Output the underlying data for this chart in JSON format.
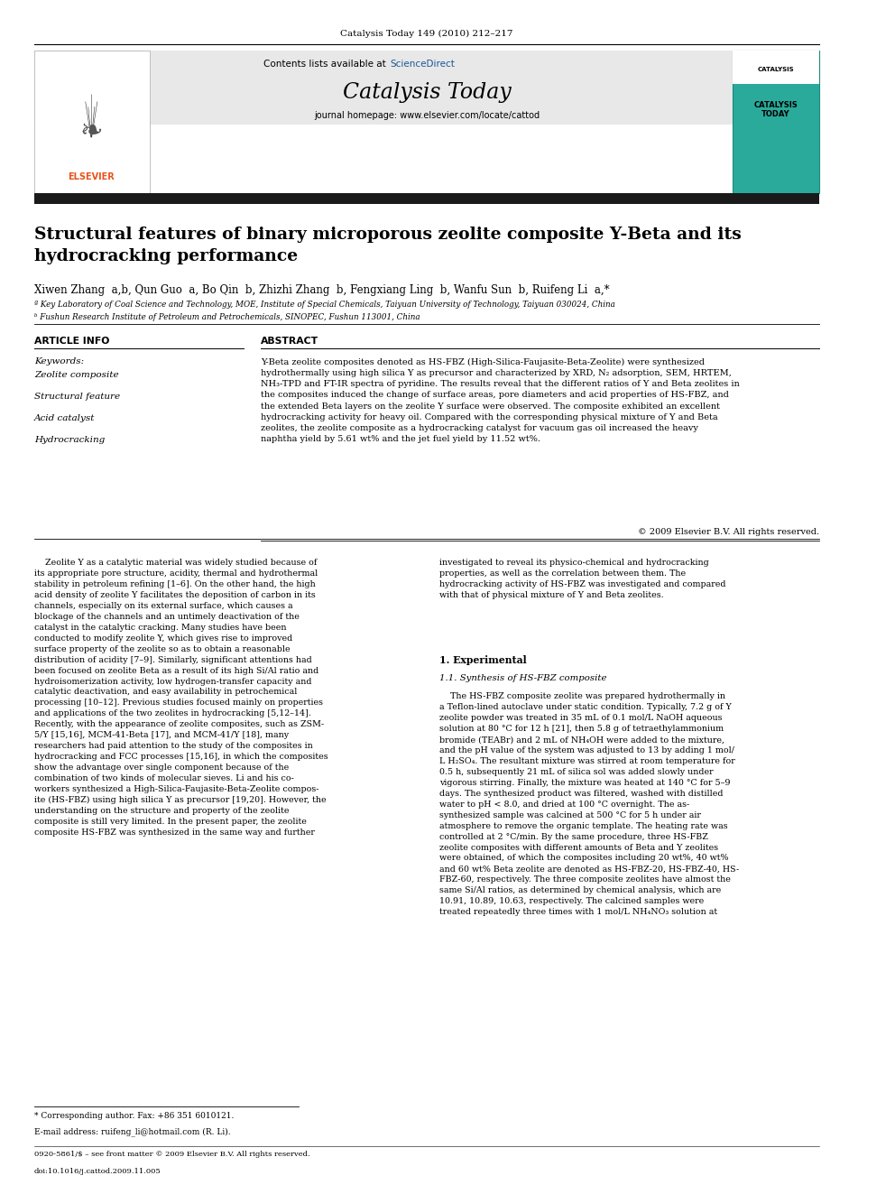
{
  "page_width": 9.92,
  "page_height": 13.23,
  "bg_color": "#ffffff",
  "top_journal_ref": "Catalysis Today 149 (2010) 212–217",
  "header_bg": "#e8e8e8",
  "contents_line_pre": "Contents lists available at ",
  "contents_line_link": "ScienceDirect",
  "sciencedirect_color": "#1a5799",
  "journal_name": "Catalysis Today",
  "journal_homepage": "journal homepage: www.elsevier.com/locate/cattod",
  "elsevier_color": "#e8521a",
  "black_bar_color": "#1a1a1a",
  "title": "Structural features of binary microporous zeolite composite Y-Beta and its\nhydrocracking performance",
  "authors": "Xiwen Zhang  a,b, Qun Guo  a, Bo Qin  b, Zhizhi Zhang  b, Fengxiang Ling  b, Wanfu Sun  b, Ruifeng Li  a,*",
  "affil_a": "ª Key Laboratory of Coal Science and Technology, MOE, Institute of Special Chemicals, Taiyuan University of Technology, Taiyuan 030024, China",
  "affil_b": "ᵇ Fushun Research Institute of Petroleum and Petrochemicals, SINOPEC, Fushun 113001, China",
  "article_info_title": "ARTICLE INFO",
  "keywords_label": "Keywords:",
  "keywords": [
    "Zeolite composite",
    "Structural feature",
    "Acid catalyst",
    "Hydrocracking"
  ],
  "abstract_title": "ABSTRACT",
  "abstract_text": "Y-Beta zeolite composites denoted as HS-FBZ (High-Silica-Faujasite-Beta-Zeolite) were synthesized\nhydrothermally using high silica Y as precursor and characterized by XRD, N₂ adsorption, SEM, HRTEM,\nNH₃-TPD and FT-IR spectra of pyridine. The results reveal that the different ratios of Y and Beta zeolites in\nthe composites induced the change of surface areas, pore diameters and acid properties of HS-FBZ, and\nthe extended Beta layers on the zeolite Y surface were observed. The composite exhibited an excellent\nhydrocracking activity for heavy oil. Compared with the corresponding physical mixture of Y and Beta\nzeolites, the zeolite composite as a hydrocracking catalyst for vacuum gas oil increased the heavy\nnaphtha yield by 5.61 wt% and the jet fuel yield by 11.52 wt%.",
  "copyright_line": "© 2009 Elsevier B.V. All rights reserved.",
  "body_col1_p1": "    Zeolite Y as a catalytic material was widely studied because of\nits appropriate pore structure, acidity, thermal and hydrothermal\nstability in petroleum refining [1–6]. On the other hand, the high\nacid density of zeolite Y facilitates the deposition of carbon in its\nchannels, especially on its external surface, which causes a\nblockage of the channels and an untimely deactivation of the\ncatalyst in the catalytic cracking. Many studies have been\nconducted to modify zeolite Y, which gives rise to improved\nsurface property of the zeolite so as to obtain a reasonable\ndistribution of acidity [7–9]. Similarly, significant attentions had\nbeen focused on zeolite Beta as a result of its high Si/Al ratio and\nhydroisomerization activity, low hydrogen-transfer capacity and\ncatalytic deactivation, and easy availability in petrochemical\nprocessing [10–12]. Previous studies focused mainly on properties\nand applications of the two zeolites in hydrocracking [5,12–14].\nRecently, with the appearance of zeolite composites, such as ZSM-\n5/Y [15,16], MCM-41-Beta [17], and MCM-41/Y [18], many\nresearchers had paid attention to the study of the composites in\nhydrocracking and FCC processes [15,16], in which the composites\nshow the advantage over single component because of the\ncombination of two kinds of molecular sieves. Li and his co-\nworkers synthesized a High-Silica-Faujasite-Beta-Zeolite compos-\nite (HS-FBZ) using high silica Y as precursor [19,20]. However, the\nunderstanding on the structure and property of the zeolite\ncomposite is still very limited. In the present paper, the zeolite\ncomposite HS-FBZ was synthesized in the same way and further",
  "body_col2_p1": "investigated to reveal its physico-chemical and hydrocracking\nproperties, as well as the correlation between them. The\nhydrocracking activity of HS-FBZ was investigated and compared\nwith that of physical mixture of Y and Beta zeolites.",
  "section1_title": "1. Experimental",
  "section11_title": "1.1. Synthesis of HS-FBZ composite",
  "section11_text": "    The HS-FBZ composite zeolite was prepared hydrothermally in\na Teflon-lined autoclave under static condition. Typically, 7.2 g of Y\nzeolite powder was treated in 35 mL of 0.1 mol/L NaOH aqueous\nsolution at 80 °C for 12 h [21], then 5.8 g of tetraethylammonium\nbromide (TEABr) and 2 mL of NH₄OH were added to the mixture,\nand the pH value of the system was adjusted to 13 by adding 1 mol/\nL H₂SO₄. The resultant mixture was stirred at room temperature for\n0.5 h, subsequently 21 mL of silica sol was added slowly under\nvigorous stirring. Finally, the mixture was heated at 140 °C for 5–9\ndays. The synthesized product was filtered, washed with distilled\nwater to pH < 8.0, and dried at 100 °C overnight. The as-\nsynthesized sample was calcined at 500 °C for 5 h under air\natmosphere to remove the organic template. The heating rate was\ncontrolled at 2 °C/min. By the same procedure, three HS-FBZ\nzeolite composites with different amounts of Beta and Y zeolites\nwere obtained, of which the composites including 20 wt%, 40 wt%\nand 60 wt% Beta zeolite are denoted as HS-FBZ-20, HS-FBZ-40, HS-\nFBZ-60, respectively. The three composite zeolites have almost the\nsame Si/Al ratios, as determined by chemical analysis, which are\n10.91, 10.89, 10.63, respectively. The calcined samples were\ntreated repeatedly three times with 1 mol/L NH₄NO₃ solution at",
  "footnote_star": "* Corresponding author. Fax: +86 351 6010121.",
  "footnote_email": "E-mail address: ruifeng_li@hotmail.com (R. Li).",
  "footer_line1": "0920-5861/$ – see front matter © 2009 Elsevier B.V. All rights reserved.",
  "footer_line2": "doi:10.1016/j.cattod.2009.11.005"
}
